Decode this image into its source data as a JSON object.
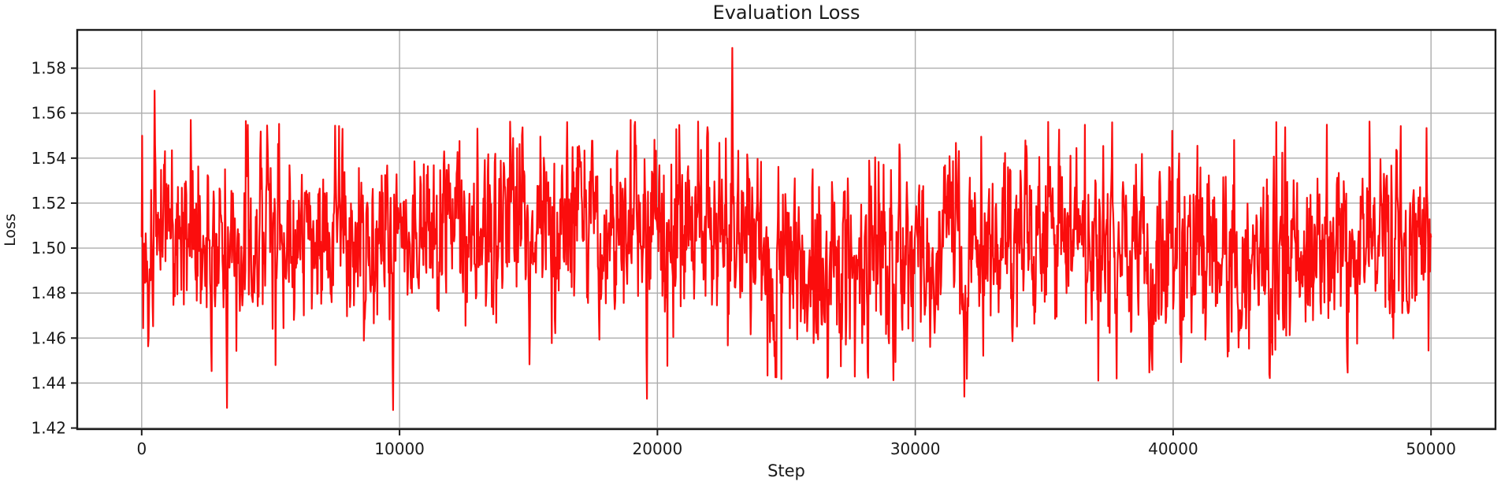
{
  "chart_data": {
    "type": "line",
    "title": "Evaluation Loss",
    "xlabel": "Step",
    "ylabel": "Loss",
    "xlim": [
      -2500,
      52500
    ],
    "ylim": [
      1.4195,
      1.597
    ],
    "xticks": [
      0,
      10000,
      20000,
      30000,
      40000,
      50000
    ],
    "yticks": [
      1.42,
      1.44,
      1.46,
      1.48,
      1.5,
      1.52,
      1.54,
      1.56,
      1.58
    ],
    "grid": true,
    "legend_visible": false,
    "series": [
      {
        "name": "evaluation-loss",
        "x_start": 0,
        "x_end": 50000,
        "n_points": 2600,
        "seed": 1337421,
        "noise_std": 0.018,
        "ar_coeff": 0.45,
        "band_min": 1.441,
        "band_max": 1.557,
        "baseline_segments": [
          {
            "from": 0,
            "to": 9000,
            "mean": 1.503
          },
          {
            "from": 9000,
            "to": 19000,
            "mean": 1.508
          },
          {
            "from": 19000,
            "to": 24000,
            "mean": 1.505
          },
          {
            "from": 24000,
            "to": 29500,
            "mean": 1.492
          },
          {
            "from": 29500,
            "to": 50000,
            "mean": 1.5
          }
        ],
        "notable_points": [
          {
            "step": 100,
            "value": 1.502
          },
          {
            "step": 500,
            "value": 1.57
          },
          {
            "step": 1900,
            "value": 1.557
          },
          {
            "step": 3300,
            "value": 1.429
          },
          {
            "step": 9750,
            "value": 1.428
          },
          {
            "step": 16500,
            "value": 1.556
          },
          {
            "step": 19600,
            "value": 1.433
          },
          {
            "step": 22900,
            "value": 1.589
          },
          {
            "step": 31900,
            "value": 1.434
          },
          {
            "step": 37800,
            "value": 1.442
          },
          {
            "step": 44000,
            "value": 1.556
          },
          {
            "step": 50000,
            "value": 1.505
          }
        ]
      }
    ]
  },
  "figure": {
    "background_color": "#ffffff",
    "line_color": "#fb0d0d",
    "line_width": 2.2,
    "grid_color": "#adadad",
    "grid_width": 1.4,
    "spine_color": "#1c1c1c",
    "spine_width": 2.4,
    "tick_length": 8,
    "tick_font_size": 20,
    "tick_color": "#1a1a1a"
  }
}
